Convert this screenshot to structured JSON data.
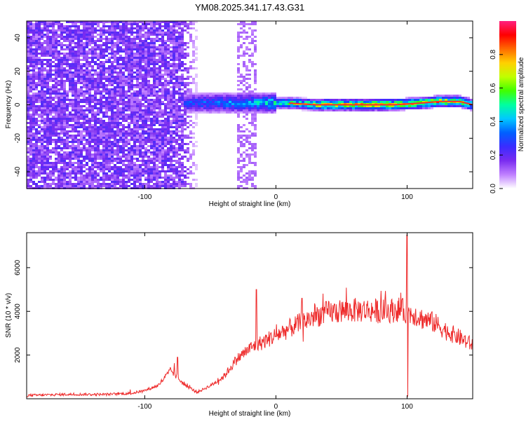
{
  "figure": {
    "title": "YM08.2025.341.17.43.G31"
  },
  "chart_data": [
    {
      "type": "heatmap",
      "title": "YM08.2025.341.17.43.G31",
      "xlabel": "Height of straight line (km)",
      "ylabel": "Frequency (Hz)",
      "xlim": [
        -190,
        150
      ],
      "ylim": [
        -50,
        50
      ],
      "xticks": [
        -100,
        0,
        100
      ],
      "yticks": [
        -40,
        -20,
        0,
        20,
        40
      ],
      "colorbar": {
        "label": "Normalized spectral amplitude",
        "range": [
          0,
          1
        ],
        "ticks": [
          "0.0",
          "0.2",
          "0.4",
          "0.6",
          "0.8"
        ],
        "colors": [
          "#ffffff",
          "#c080ff",
          "#7a2cf0",
          "#3a2cff",
          "#0060ff",
          "#00c8ff",
          "#00ffa0",
          "#40ff00",
          "#c0ff00",
          "#ffd000",
          "#ff6a00",
          "#ff0000",
          "#ff2080"
        ]
      },
      "series": [
        {
          "name": "dominant-frequency ridge",
          "x": [
            -70,
            -50,
            -30,
            -10,
            10,
            30,
            50,
            70,
            90,
            110,
            125,
            140,
            150
          ],
          "y": [
            1,
            1,
            1,
            1,
            1,
            0,
            0,
            0,
            0,
            1,
            2,
            2,
            0
          ],
          "amplitude": [
            0.35,
            0.4,
            0.45,
            0.5,
            0.62,
            0.78,
            0.85,
            0.88,
            0.85,
            0.8,
            0.9,
            0.8,
            0.6
          ]
        }
      ],
      "regions": [
        {
          "name": "broadband noise",
          "x_range": [
            -190,
            -70
          ],
          "amplitude": 0.15
        },
        {
          "name": "weak vertical band",
          "x_range": [
            -30,
            -15
          ],
          "amplitude": 0.08
        }
      ]
    },
    {
      "type": "line",
      "xlabel": "Height of straight line (km)",
      "ylabel": "SNR (10 * v/v)",
      "xlim": [
        -190,
        150
      ],
      "ylim": [
        0,
        7600
      ],
      "xticks": [
        -100,
        0,
        100
      ],
      "yticks": [
        2000,
        4000,
        6000
      ],
      "series": [
        {
          "name": "SNR",
          "color": "#ee2a2a",
          "x": [
            -190,
            -160,
            -130,
            -110,
            -100,
            -90,
            -80,
            -70,
            -60,
            -50,
            -40,
            -30,
            -20,
            -10,
            0,
            10,
            20,
            30,
            40,
            50,
            60,
            70,
            80,
            90,
            95,
            100,
            105,
            110,
            120,
            130,
            140,
            150
          ],
          "y": [
            150,
            200,
            200,
            250,
            380,
            600,
            1300,
            650,
            300,
            600,
            1000,
            1800,
            2300,
            2600,
            2900,
            3200,
            3500,
            3800,
            3950,
            4000,
            4050,
            4050,
            4000,
            4050,
            4100,
            3900,
            3900,
            3700,
            3500,
            3100,
            2800,
            2450
          ],
          "spikes": [
            {
              "x": -75,
              "y": 1900
            },
            {
              "x": -15,
              "y": 5000
            },
            {
              "x": 20,
              "y": 4600
            },
            {
              "x": 100,
              "y": 7500
            },
            {
              "x": 100.5,
              "y": 100
            }
          ]
        }
      ]
    }
  ]
}
